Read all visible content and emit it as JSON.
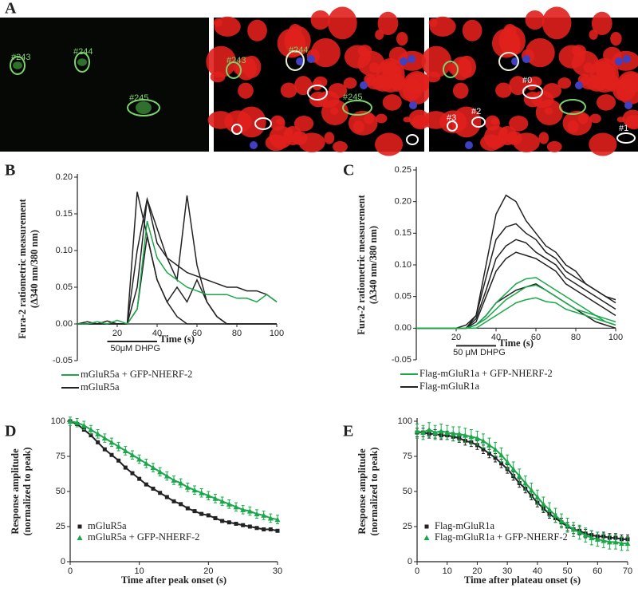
{
  "panel_a": {
    "label": "A",
    "images": [
      {
        "labels": [
          "#243",
          "#244",
          "#245"
        ]
      },
      {
        "labels": [
          "#243",
          "#244",
          "#245"
        ]
      },
      {
        "labels": [
          "#0",
          "#1",
          "#2",
          "#3"
        ]
      }
    ]
  },
  "chart_data": [
    {
      "type": "line",
      "panel": "B",
      "ylabel": [
        "Fura-2 ratiometric measurement",
        "(Δ340 nm/380 nm)"
      ],
      "xlabel": "Time (s)",
      "x": [
        0,
        5,
        10,
        15,
        20,
        25,
        30,
        35,
        40,
        45,
        50,
        55,
        60,
        65,
        70,
        75,
        80,
        85,
        90,
        95,
        100
      ],
      "xlim": [
        0,
        100
      ],
      "ylim": [
        -0.05,
        0.2
      ],
      "xticks": [
        20,
        40,
        60,
        80,
        100
      ],
      "yticks": [
        -0.05,
        {
          "value": 0,
          "label": "0.00"
        },
        0.05,
        {
          "value": 0.1,
          "label": "0.10"
        },
        0.15,
        {
          "value": 0.2,
          "label": "0.20"
        }
      ],
      "stimulus": {
        "label": "50μM DHPG",
        "start": 15,
        "end": 40
      },
      "legend": "below",
      "series": [
        {
          "name": "mGluR5a + GFP-NHERF-2",
          "color": "#1aa84a",
          "traces": [
            [
              0,
              0,
              0.003,
              0,
              0.005,
              0,
              0.02,
              0.14,
              0.09,
              0.07,
              0.06,
              0.05,
              0.045,
              0.04,
              0.04,
              0.04,
              0.035,
              0.035,
              0.03,
              0.04,
              0.03
            ]
          ]
        },
        {
          "name": "mGluR5a",
          "color": "#222222",
          "traces": [
            [
              0,
              0.003,
              0,
              0,
              0,
              0,
              0.18,
              0.12,
              0.06,
              0.03,
              0.01,
              0,
              0,
              0,
              0,
              0,
              0,
              0,
              0,
              0,
              0
            ],
            [
              0,
              0,
              0,
              0.004,
              0,
              0,
              0.1,
              0.17,
              0.13,
              0.09,
              0.06,
              0.175,
              0.08,
              0.03,
              0.01,
              0,
              0,
              0,
              0,
              0,
              0
            ],
            [
              0,
              0,
              0,
              0,
              0,
              0,
              0.05,
              0.17,
              0.11,
              0.09,
              0.08,
              0.07,
              0.065,
              0.06,
              0.055,
              0.05,
              0.05,
              0.045,
              0.045,
              0.04,
              0.03
            ],
            [
              0,
              0,
              0,
              0,
              0,
              0,
              0.02,
              0.12,
              0.06,
              0.03,
              0.05,
              0.03,
              0.06,
              0.03,
              0.01,
              0,
              0,
              0,
              0,
              0,
              0
            ]
          ]
        }
      ]
    },
    {
      "type": "line",
      "panel": "C",
      "ylabel": [
        "Fura-2 ratiometric measurement",
        "(Δ340 nm/380 nm)"
      ],
      "xlabel": "Time (s)",
      "x": [
        0,
        5,
        10,
        15,
        20,
        25,
        30,
        35,
        40,
        45,
        50,
        55,
        60,
        65,
        70,
        75,
        80,
        85,
        90,
        95,
        100
      ],
      "xlim": [
        0,
        100
      ],
      "ylim": [
        -0.05,
        0.25
      ],
      "xticks": [
        20,
        40,
        60,
        80,
        100
      ],
      "yticks": [
        -0.05,
        {
          "value": 0,
          "label": "0.00"
        },
        0.05,
        {
          "value": 0.1,
          "label": "0.10"
        },
        0.15,
        {
          "value": 0.2,
          "label": "0.20"
        },
        0.25
      ],
      "stimulus": {
        "label": "50 μM DHPG",
        "start": 20,
        "end": 40
      },
      "legend": "below",
      "series": [
        {
          "name": "Flag-mGluR1a + GFP-NHERF-2",
          "color": "#1aa84a",
          "traces": [
            [
              0,
              0,
              0,
              0,
              0,
              0,
              0.005,
              0.02,
              0.04,
              0.055,
              0.07,
              0.078,
              0.08,
              0.07,
              0.06,
              0.05,
              0.04,
              0.03,
              0.02,
              0.015,
              0.01
            ],
            [
              0,
              0,
              0,
              0,
              0,
              0,
              0.005,
              0.015,
              0.03,
              0.045,
              0.055,
              0.065,
              0.068,
              0.06,
              0.05,
              0.04,
              0.03,
              0.025,
              0.02,
              0.01,
              0.005
            ],
            [
              0,
              0,
              0,
              0,
              0,
              0,
              0,
              0.01,
              0.02,
              0.03,
              0.04,
              0.045,
              0.048,
              0.042,
              0.04,
              0.03,
              0.025,
              0.02,
              0.015,
              0.01,
              0.005
            ]
          ]
        },
        {
          "name": "Flag-mGluR1a",
          "color": "#222222",
          "traces": [
            [
              0,
              0,
              0,
              0,
              0,
              0.005,
              0.02,
              0.1,
              0.18,
              0.21,
              0.2,
              0.17,
              0.15,
              0.13,
              0.12,
              0.1,
              0.09,
              0.07,
              0.06,
              0.05,
              0.04
            ],
            [
              0,
              0,
              0,
              0,
              0,
              0,
              0.02,
              0.08,
              0.14,
              0.16,
              0.165,
              0.15,
              0.14,
              0.12,
              0.11,
              0.09,
              0.08,
              0.07,
              0.06,
              0.05,
              0.045
            ],
            [
              0,
              0,
              0,
              0,
              0,
              0,
              0.015,
              0.06,
              0.11,
              0.13,
              0.14,
              0.135,
              0.12,
              0.11,
              0.1,
              0.08,
              0.07,
              0.06,
              0.05,
              0.04,
              0.03
            ],
            [
              0,
              0,
              0,
              0,
              0,
              0,
              0.01,
              0.05,
              0.09,
              0.11,
              0.12,
              0.115,
              0.11,
              0.1,
              0.09,
              0.07,
              0.06,
              0.05,
              0.04,
              0.03,
              0.02
            ],
            [
              0,
              0,
              0,
              0,
              0,
              0,
              0.005,
              0.02,
              0.04,
              0.05,
              0.06,
              0.065,
              0.07,
              0.06,
              0.05,
              0.04,
              0.03,
              0.02,
              0.01,
              0.005,
              0
            ]
          ]
        }
      ]
    },
    {
      "type": "scatter",
      "panel": "D",
      "ylabel": [
        "Response amplitude",
        "(normalized to peak)"
      ],
      "xlabel": "Time after peak onset (s)",
      "x": [
        0,
        1,
        2,
        3,
        4,
        5,
        6,
        7,
        8,
        9,
        10,
        11,
        12,
        13,
        14,
        15,
        16,
        17,
        18,
        19,
        20,
        21,
        22,
        23,
        24,
        25,
        26,
        27,
        28,
        29,
        30
      ],
      "xlim": [
        0,
        30
      ],
      "ylim": [
        0,
        100
      ],
      "xticks": [
        0,
        10,
        20,
        30
      ],
      "yticks": [
        0,
        25,
        50,
        75,
        100
      ],
      "legend": "lower left",
      "series": [
        {
          "name": "mGluR5a",
          "color": "#222222",
          "marker": "square",
          "values": [
            100,
            98,
            94,
            90,
            85,
            80,
            76,
            72,
            67,
            63,
            59,
            55,
            52,
            49,
            46,
            43,
            41,
            38,
            36,
            34,
            33,
            31,
            29,
            28,
            27,
            26,
            25,
            24,
            23,
            23,
            22
          ],
          "errors": [
            1,
            1,
            1,
            1,
            1,
            1,
            1,
            1,
            1,
            1,
            1,
            1,
            1,
            1,
            1,
            1,
            1,
            1,
            1,
            1,
            1,
            1,
            1,
            1,
            1,
            1,
            1,
            1,
            1,
            1,
            1
          ]
        },
        {
          "name": "mGluR5a + GFP-NHERF-2",
          "color": "#1aa84a",
          "marker": "triangle",
          "values": [
            100,
            99,
            97,
            94,
            91,
            88,
            85,
            82,
            79,
            76,
            73,
            70,
            67,
            64,
            61,
            58,
            56,
            53,
            51,
            49,
            47,
            45,
            43,
            41,
            39,
            37,
            36,
            34,
            33,
            31,
            30
          ],
          "errors": [
            3,
            3,
            3,
            3,
            3,
            3,
            3,
            3,
            3,
            3,
            3,
            3,
            3,
            3,
            3,
            3,
            3,
            3,
            3,
            3,
            3,
            3,
            3,
            3,
            3,
            3,
            3,
            3,
            3,
            3,
            3
          ]
        }
      ]
    },
    {
      "type": "scatter",
      "panel": "E",
      "ylabel": [
        "Response amplitude",
        "(normalized to peak)"
      ],
      "xlabel": "Time after plateau onset (s)",
      "x": [
        0,
        2,
        4,
        6,
        8,
        10,
        12,
        14,
        16,
        18,
        20,
        22,
        24,
        26,
        28,
        30,
        32,
        34,
        36,
        38,
        40,
        42,
        44,
        46,
        48,
        50,
        52,
        54,
        56,
        58,
        60,
        62,
        64,
        66,
        68,
        70
      ],
      "xlim": [
        0,
        70
      ],
      "ylim": [
        0,
        100
      ],
      "xticks": [
        0,
        10,
        20,
        30,
        40,
        50,
        60,
        70
      ],
      "yticks": [
        0,
        25,
        50,
        75,
        100
      ],
      "legend": "lower left",
      "series": [
        {
          "name": "Flag-mGluR1a",
          "color": "#222222",
          "marker": "square",
          "values": [
            92,
            92,
            91,
            91,
            90,
            90,
            89,
            88,
            86,
            85,
            83,
            80,
            77,
            74,
            70,
            66,
            61,
            56,
            52,
            47,
            42,
            38,
            34,
            31,
            28,
            25,
            23,
            22,
            20,
            19,
            18,
            18,
            17,
            17,
            16,
            16
          ],
          "errors": [
            3,
            3,
            3,
            3,
            3,
            3,
            3,
            3,
            3,
            3,
            3,
            3,
            3,
            3,
            3,
            3,
            3,
            3,
            3,
            3,
            3,
            3,
            3,
            3,
            3,
            3,
            3,
            3,
            3,
            3,
            3,
            3,
            3,
            3,
            3,
            3
          ]
        },
        {
          "name": "Flag-mGluR1a + GFP-NHERF-2",
          "color": "#1aa84a",
          "marker": "triangle",
          "values": [
            93,
            92,
            94,
            92,
            93,
            92,
            91,
            91,
            90,
            89,
            88,
            86,
            83,
            80,
            76,
            71,
            66,
            61,
            56,
            51,
            46,
            41,
            37,
            33,
            29,
            26,
            23,
            21,
            19,
            17,
            16,
            15,
            14,
            14,
            13,
            13
          ],
          "errors": [
            5,
            5,
            5,
            5,
            5,
            5,
            5,
            5,
            5,
            5,
            5,
            5,
            5,
            5,
            5,
            5,
            5,
            5,
            5,
            5,
            5,
            5,
            5,
            5,
            5,
            5,
            5,
            5,
            5,
            5,
            5,
            5,
            5,
            5,
            5,
            5
          ]
        }
      ]
    }
  ]
}
